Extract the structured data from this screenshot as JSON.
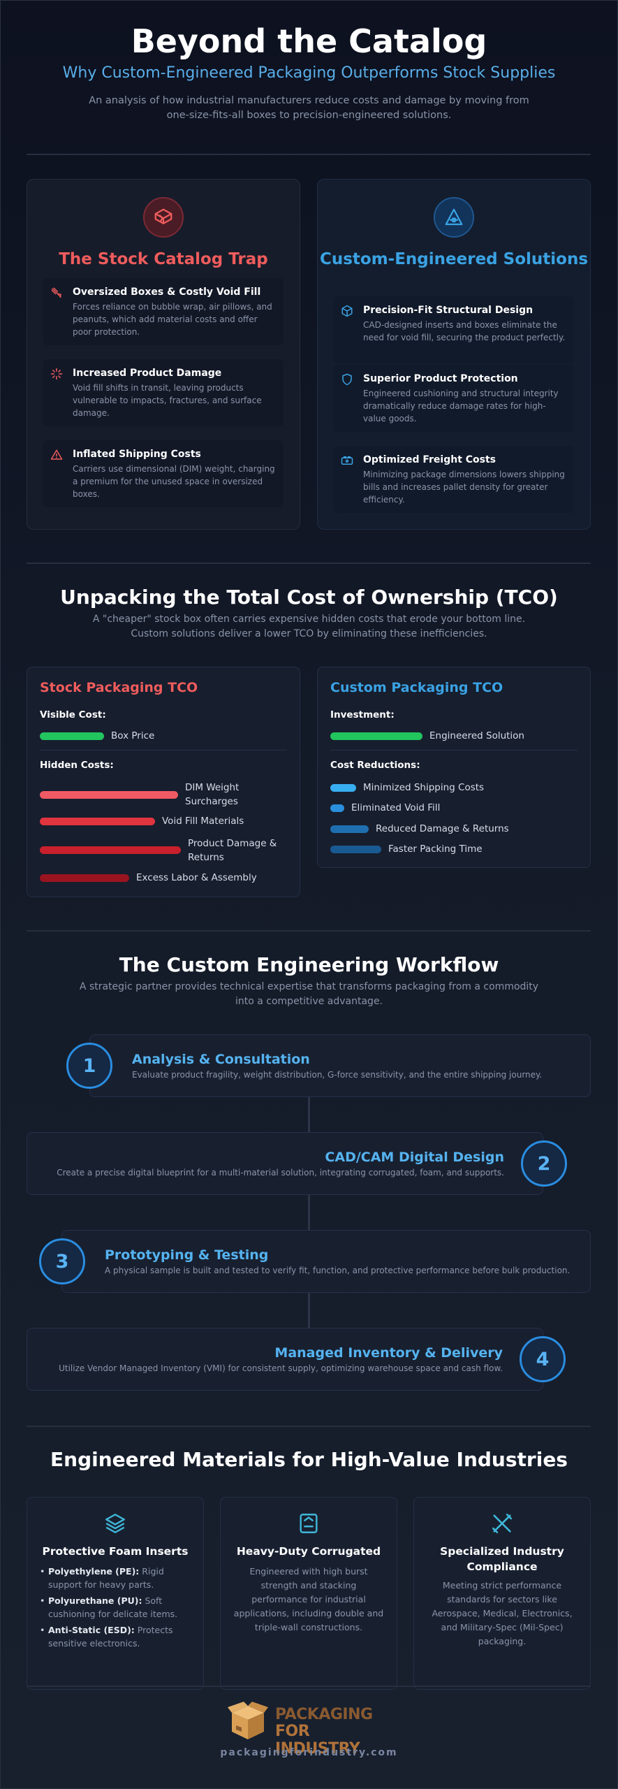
{
  "header": {
    "title": "Beyond the Catalog",
    "subtitle": "Why Custom-Engineered Packaging Outperforms Stock Supplies",
    "intro": "An analysis of how industrial manufacturers reduce costs and damage by moving from one-size-fits-all boxes to precision-engineered solutions."
  },
  "comparison": {
    "stock": {
      "title": "The Stock Catalog Trap",
      "icon": "broken-box-icon",
      "items": [
        {
          "icon": "void-fill-icon",
          "title": "Oversized Boxes & Costly Void Fill",
          "desc": "Forces reliance on bubble wrap, air pillows, and peanuts, which add material costs and offer poor protection."
        },
        {
          "icon": "damage-burst-icon",
          "title": "Increased Product Damage",
          "desc": "Void fill shifts in transit, leaving products vulnerable to impacts, fractures, and surface damage."
        },
        {
          "icon": "warning-icon",
          "title": "Inflated Shipping Costs",
          "desc": "Carriers use dimensional (DIM) weight, charging a premium for the unused space in oversized boxes."
        }
      ]
    },
    "custom": {
      "title": "Custom-Engineered Solutions",
      "icon": "engineering-icon",
      "items": [
        {
          "icon": "cube-icon",
          "title": "Precision-Fit Structural Design",
          "desc": "CAD-designed inserts and boxes eliminate the need for void fill, securing the product perfectly."
        },
        {
          "icon": "shield-icon",
          "title": "Superior Product Protection",
          "desc": "Engineered cushioning and structural integrity dramatically reduce damage rates for high-value goods."
        },
        {
          "icon": "truck-icon",
          "title": "Optimized Freight Costs",
          "desc": "Minimizing package dimensions lowers shipping bills and increases pallet density for greater efficiency."
        }
      ]
    }
  },
  "tco": {
    "title": "Unpacking the Total Cost of Ownership (TCO)",
    "desc": "A \"cheaper\" stock box often carries expensive hidden costs that erode your bottom line. Custom solutions deliver a lower TCO by eliminating these inefficiencies.",
    "stock": {
      "title": "Stock Packaging TCO",
      "visible_label": "Visible Cost:",
      "visible": [
        {
          "label": "Box Price",
          "level": 0.42,
          "color": "#22c55e"
        }
      ],
      "hidden_label": "Hidden Costs:",
      "hidden": [
        {
          "label": "DIM Weight Surcharges",
          "level": 0.9,
          "color": "#f05a64"
        },
        {
          "label": "Void Fill Materials",
          "level": 0.75,
          "color": "#e0343e"
        },
        {
          "label": "Product Damage & Returns",
          "level": 0.92,
          "color": "#c8202c"
        },
        {
          "label": "Excess Labor & Assembly",
          "level": 0.58,
          "color": "#9a1420"
        }
      ]
    },
    "custom": {
      "title": "Custom Packaging TCO",
      "investment_label": "Investment:",
      "investment": [
        {
          "label": "Engineered Solution",
          "level": 0.6,
          "color": "#22c55e"
        }
      ],
      "reductions_label": "Cost Reductions:",
      "reductions": [
        {
          "label": "Minimized Shipping Costs",
          "level": 0.17,
          "color": "#38aef0"
        },
        {
          "label": "Eliminated Void Fill",
          "level": 0.09,
          "color": "#2a8fdc"
        },
        {
          "label": "Reduced Damage & Returns",
          "level": 0.25,
          "color": "#1f6fb0"
        },
        {
          "label": "Faster Packing Time",
          "level": 0.33,
          "color": "#1a5a92"
        }
      ]
    }
  },
  "workflow": {
    "title": "The Custom Engineering Workflow",
    "desc": "A strategic partner provides technical expertise that transforms packaging from a commodity into a competitive advantage.",
    "steps": [
      {
        "num": "1",
        "title": "Analysis & Consultation",
        "desc": "Evaluate product fragility, weight distribution, G-force sensitivity, and the entire shipping journey."
      },
      {
        "num": "2",
        "title": "CAD/CAM Digital Design",
        "desc": "Create a precise digital blueprint for a multi-material solution, integrating corrugated, foam, and supports."
      },
      {
        "num": "3",
        "title": "Prototyping & Testing",
        "desc": "A physical sample is built and tested to verify fit, function, and protective performance before bulk production."
      },
      {
        "num": "4",
        "title": "Managed Inventory & Delivery",
        "desc": "Utilize Vendor Managed Inventory (VMI) for consistent supply, optimizing warehouse space and cash flow."
      }
    ]
  },
  "materials": {
    "title": "Engineered Materials for High-Value Industries",
    "foam": {
      "icon": "layers-icon",
      "title": "Protective Foam Inserts",
      "items": [
        {
          "name": "Polyethylene (PE):",
          "text": " Rigid support for heavy parts."
        },
        {
          "name": "Polyurethane (PU):",
          "text": " Soft cushioning for delicate items."
        },
        {
          "name": "Anti-Static (ESD):",
          "text": " Protects sensitive electronics."
        }
      ]
    },
    "corrugated": {
      "icon": "box-icon",
      "title": "Heavy-Duty Corrugated",
      "desc": "Engineered with high burst strength and stacking performance for industrial applications, including double and triple-wall constructions."
    },
    "compliance": {
      "icon": "tools-icon",
      "title": "Specialized Industry Compliance",
      "desc": "Meeting strict performance standards for sectors like Aerospace, Medical, Electronics, and Military-Spec (Mil-Spec) packaging."
    }
  },
  "footer": {
    "logo_line1": "PACKAGING",
    "logo_line2": "FOR INDUSTRY",
    "website": "packagingforindustry.com"
  }
}
